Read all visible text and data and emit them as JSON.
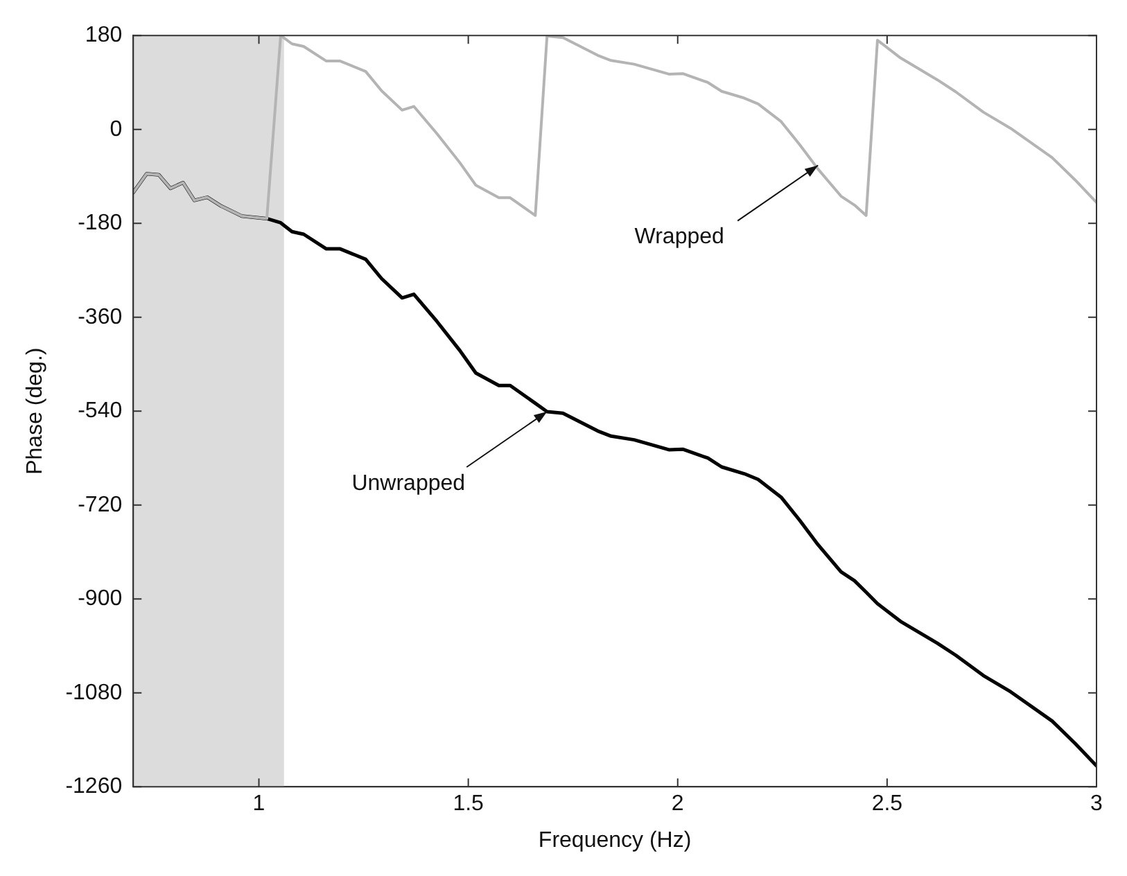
{
  "chart_data": {
    "type": "line",
    "xlabel": "Frequency (Hz)",
    "ylabel": "Phase (deg.)",
    "xlim": [
      0.7,
      3
    ],
    "xticks": [
      1,
      1.5,
      2,
      2.5,
      3
    ],
    "ylim": [
      -1260,
      180
    ],
    "yticks": [
      -1260,
      -1080,
      -900,
      -720,
      -540,
      -360,
      -180,
      0,
      180
    ],
    "grid": false,
    "legend": false,
    "marker": "none",
    "line_style": "solid",
    "bands": [
      {
        "axis": "x",
        "from": 0.7,
        "to": 1.06,
        "color": "#dcdcdc"
      }
    ],
    "annotations": [
      {
        "text": "Wrapped",
        "x": 2.335,
        "y": -69
      },
      {
        "text": "Unwrapped",
        "x": 1.688,
        "y": -541
      }
    ],
    "series": [
      {
        "color": "#b4b4b4",
        "x": [
          0.7,
          0.732,
          0.761,
          0.789,
          0.819,
          0.846,
          0.877,
          0.91,
          0.959,
          1.019,
          1.052,
          1.079,
          1.107,
          1.161,
          1.194,
          1.255,
          1.293,
          1.342,
          1.37,
          1.425,
          1.48,
          1.518,
          1.573,
          1.6,
          1.66,
          1.688,
          1.726,
          1.809,
          1.841,
          1.896,
          1.979,
          2.012,
          2.072,
          2.105,
          2.159,
          2.192,
          2.247,
          2.291,
          2.335,
          2.39,
          2.422,
          2.45,
          2.477,
          2.532,
          2.62,
          2.664,
          2.73,
          2.795,
          2.894,
          2.949,
          3.0
        ],
        "values": [
          -121,
          -85,
          -87,
          -113,
          -102,
          -136,
          -130,
          -147,
          -166,
          -171,
          180,
          164,
          159,
          131,
          131,
          111,
          74,
          37,
          44,
          -8,
          -64,
          -107,
          -131,
          -131,
          -165,
          179,
          176,
          142,
          132,
          125,
          106,
          107,
          90,
          73,
          60,
          49,
          15,
          -29,
          -76,
          -128,
          -145,
          -165,
          171,
          137,
          95,
          72,
          33,
          2,
          -54,
          -97,
          -140
        ]
      },
      {
        "color": "#000000",
        "x": [
          0.7,
          0.732,
          0.761,
          0.789,
          0.819,
          0.846,
          0.877,
          0.91,
          0.959,
          1.019,
          1.052,
          1.079,
          1.107,
          1.161,
          1.194,
          1.255,
          1.293,
          1.342,
          1.37,
          1.425,
          1.48,
          1.518,
          1.573,
          1.6,
          1.66,
          1.688,
          1.726,
          1.809,
          1.841,
          1.896,
          1.979,
          2.012,
          2.072,
          2.105,
          2.159,
          2.192,
          2.247,
          2.291,
          2.335,
          2.39,
          2.422,
          2.45,
          2.477,
          2.532,
          2.62,
          2.664,
          2.73,
          2.795,
          2.894,
          2.949,
          3.0
        ],
        "values": [
          -121,
          -85,
          -87,
          -113,
          -102,
          -136,
          -130,
          -147,
          -166,
          -171,
          -179,
          -196,
          -201,
          -229,
          -229,
          -249,
          -286,
          -323,
          -316,
          -368,
          -424,
          -467,
          -491,
          -491,
          -525,
          -541,
          -544,
          -578,
          -588,
          -595,
          -614,
          -613,
          -630,
          -647,
          -660,
          -671,
          -705,
          -749,
          -796,
          -848,
          -865,
          -887,
          -909,
          -943,
          -985,
          -1008,
          -1047,
          -1078,
          -1134,
          -1177,
          -1220
        ]
      }
    ]
  }
}
